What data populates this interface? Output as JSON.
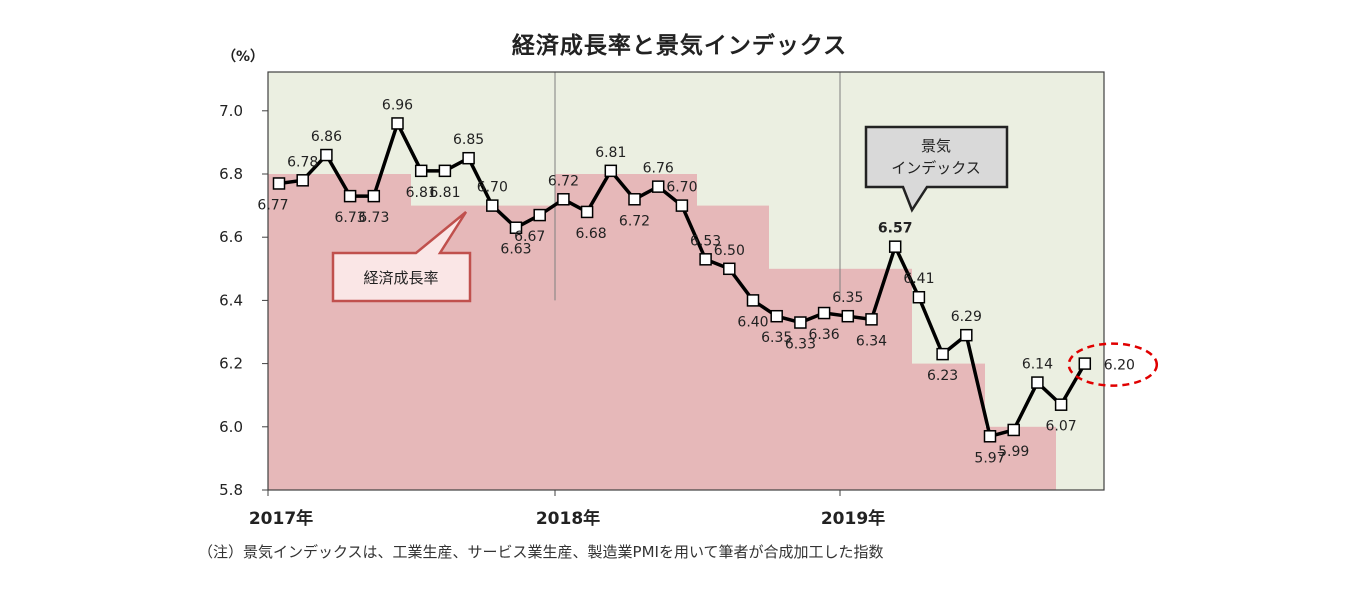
{
  "chart_data": {
    "type": "line",
    "title": "経済成長率と景気インデックス",
    "unit_label": "（%）",
    "ylim": [
      5.8,
      7.0
    ],
    "yticks": [
      "7.0",
      "6.8",
      "6.6",
      "6.4",
      "6.2",
      "6.0",
      "5.8"
    ],
    "x_labels": [
      "2017年",
      "2018年",
      "2019年"
    ],
    "grid": false,
    "series": [
      {
        "name": "景気インデックス",
        "kind": "line-with-markers",
        "color": "#000000",
        "values": [
          6.77,
          6.78,
          6.86,
          6.73,
          6.73,
          6.96,
          6.81,
          6.81,
          6.85,
          6.7,
          6.63,
          6.67,
          6.72,
          6.68,
          6.81,
          6.72,
          6.76,
          6.7,
          6.53,
          6.5,
          6.4,
          6.35,
          6.33,
          6.36,
          6.35,
          6.34,
          6.57,
          6.41,
          6.23,
          6.29,
          5.97,
          5.99,
          6.14,
          6.07,
          6.2
        ],
        "labels": [
          "6.77",
          "6.78",
          "6.86",
          "6.73",
          "6.73",
          "6.96",
          "6.81",
          "6.81",
          "6.85",
          "6.70",
          "6.63",
          "6.67",
          "6.72",
          "6.68",
          "6.81",
          "6.72",
          "6.76",
          "6.70",
          "6.53",
          "6.50",
          "6.40",
          "6.35",
          "6.33",
          "6.36",
          "6.35",
          "6.34",
          "6.57",
          "6.41",
          "6.23",
          "6.29",
          "5.97",
          "5.99",
          "6.14",
          "6.07",
          "6.20"
        ]
      },
      {
        "name": "経済成長率",
        "kind": "quarterly-step-area",
        "color": "#e6b8b9",
        "values": [
          6.8,
          6.7,
          6.7,
          6.7,
          6.8,
          6.7,
          6.5,
          6.4,
          6.4,
          6.2,
          6.0
        ]
      }
    ],
    "callouts": {
      "growth_rate": "経済成長率",
      "index_line1": "景気",
      "index_line2": "インデックス"
    },
    "colors": {
      "plot_background": "#ebefe1",
      "growth_fill": "#e6b8b9",
      "growth_callout_border": "#c0504d",
      "growth_callout_fill": "#fae6e6",
      "index_callout_fill": "#d9d9d9",
      "highlight_circle": "#e00000"
    },
    "footnote": "（注）景気インデックスは、工業生産、サービス業生産、製造業PMIを用いて筆者が合成加工した指数"
  }
}
